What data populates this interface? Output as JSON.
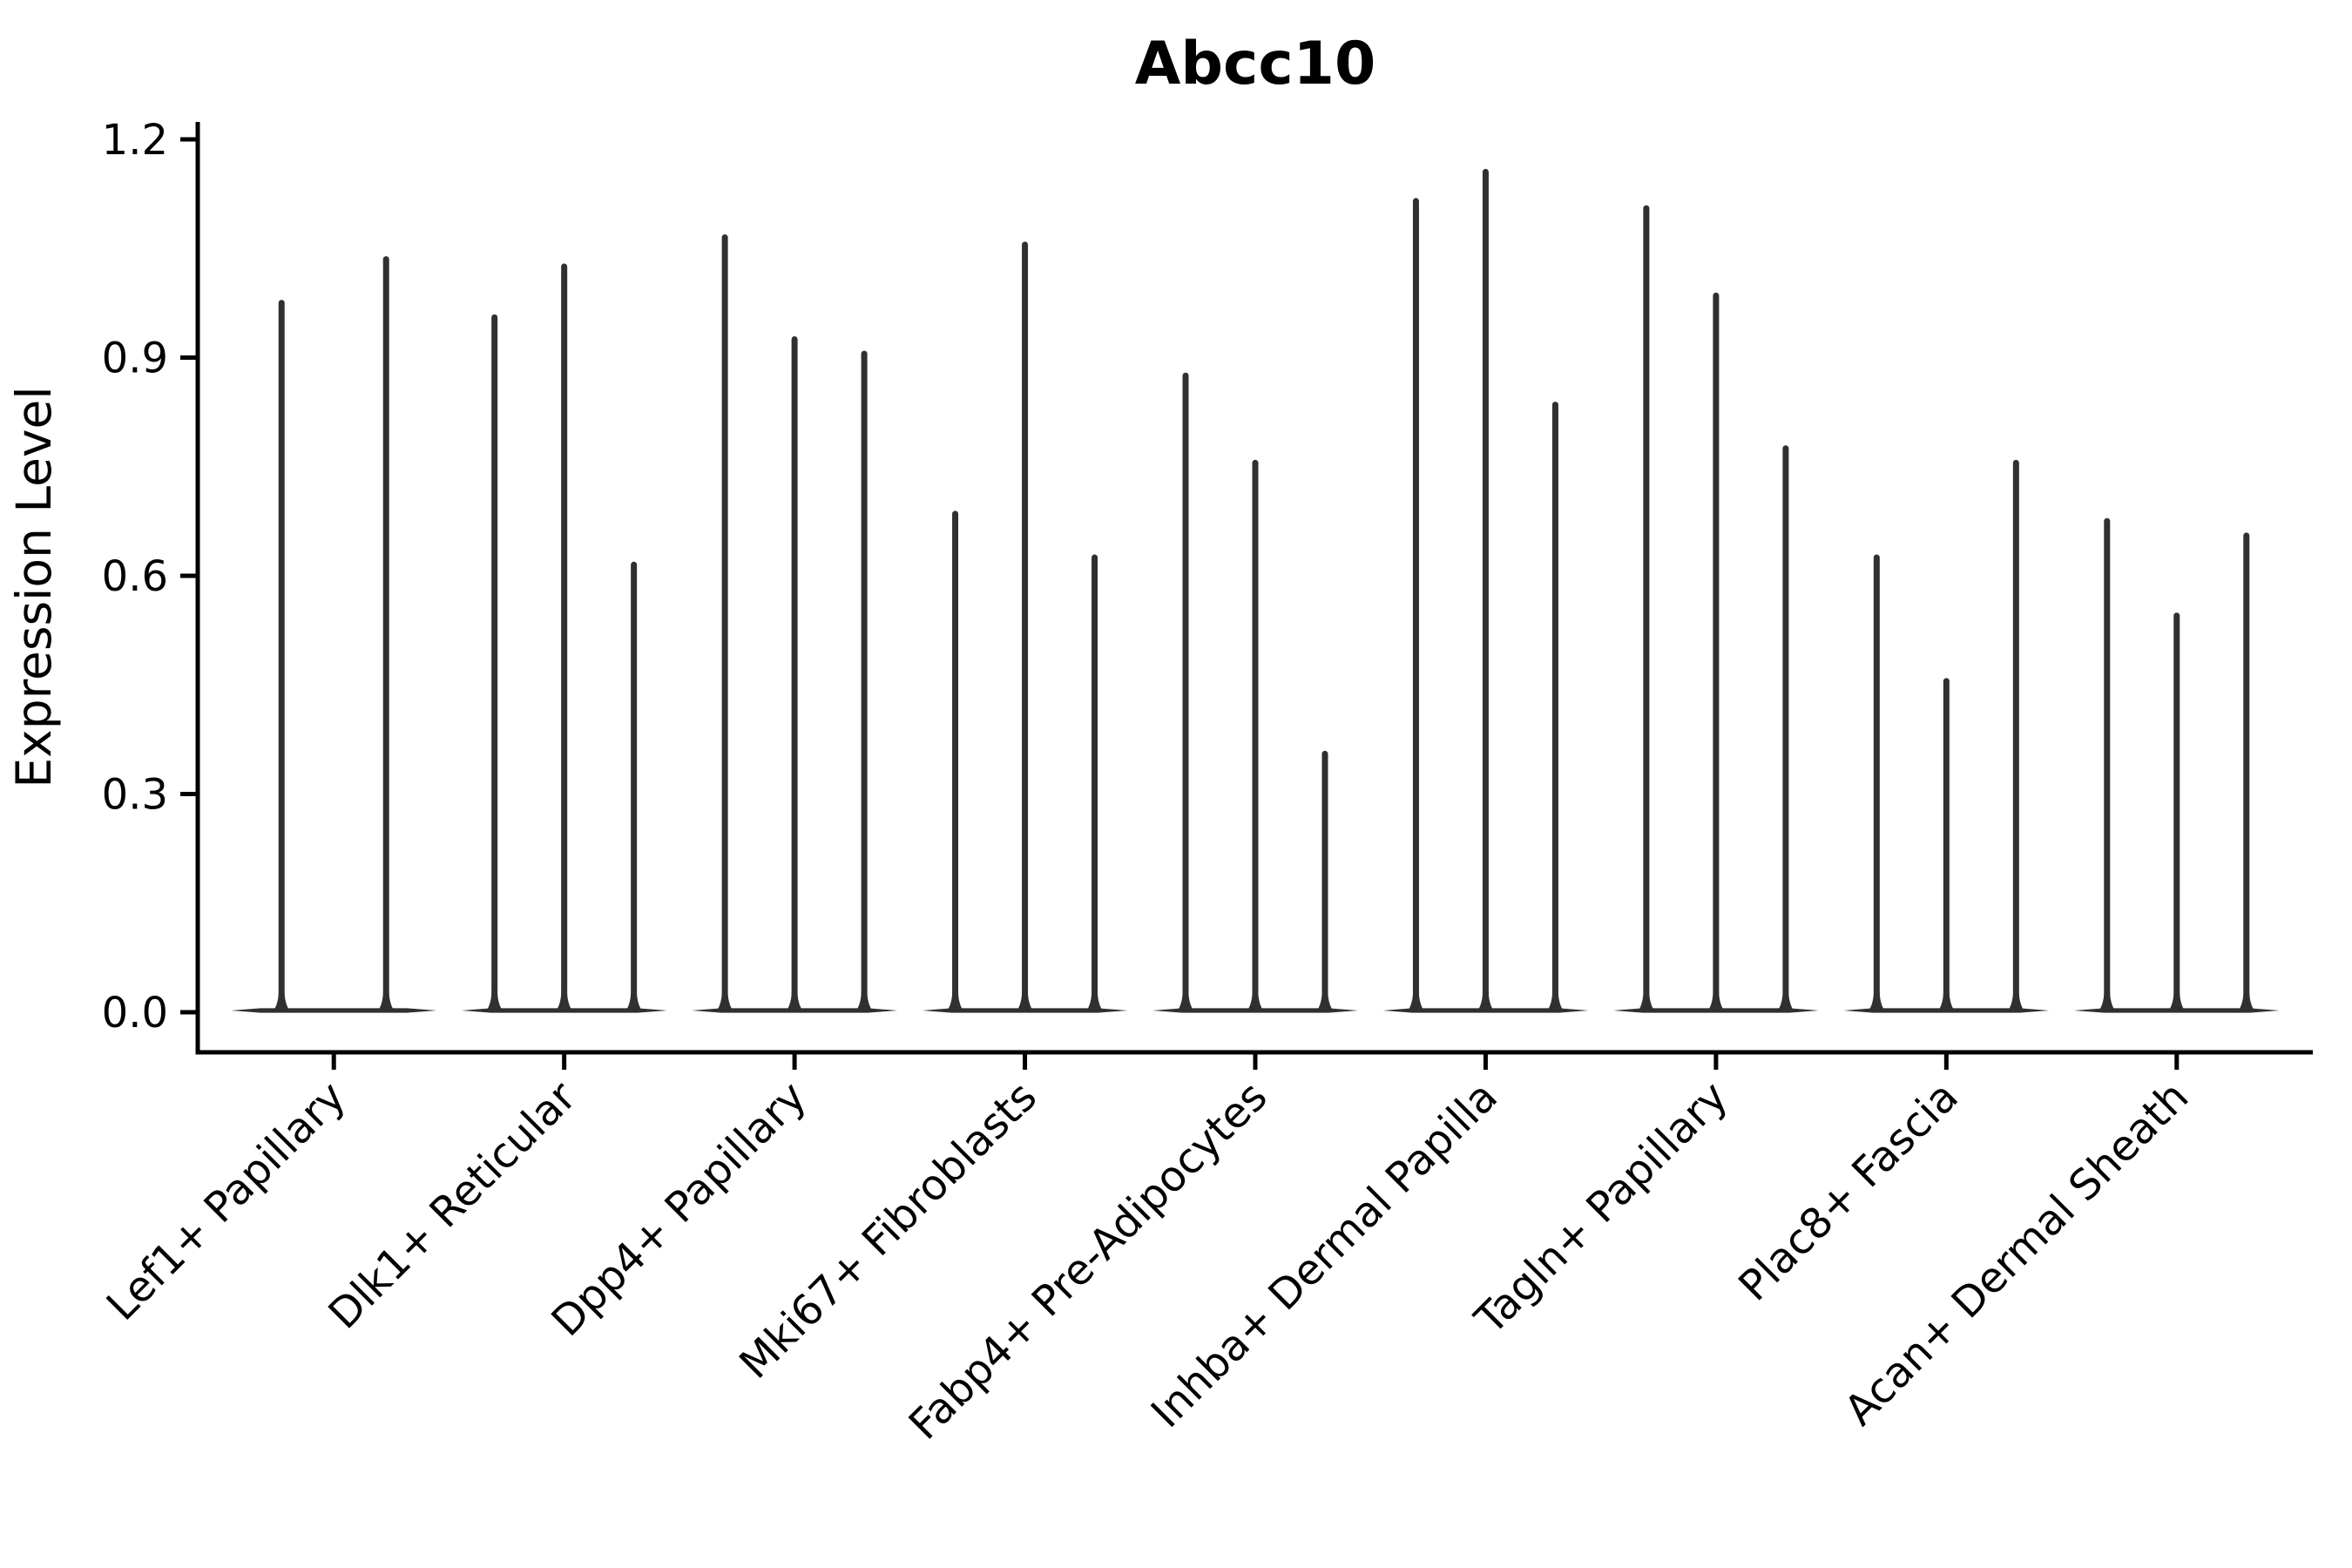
{
  "chart_data": {
    "type": "violin",
    "title": "Abcc10",
    "ylabel": "Expression Level",
    "xlabel": "",
    "ylim": [
      0,
      1.2
    ],
    "yticks": [
      0.0,
      0.3,
      0.6,
      0.9,
      1.2
    ],
    "ytick_labels": [
      "0.0",
      "0.3",
      "0.6",
      "0.9",
      "1.2"
    ],
    "grid": false,
    "legend": "none",
    "violin_color": "#303030",
    "axis_color": "#000000",
    "background_color": "#ffffff",
    "violin_style": "thin spikes rising from a flat wide base at expression 0; each category holds 2-3 dodged violins",
    "violins": [
      {
        "category": "Lef1+ Papillary",
        "maxima": [
          0.98,
          1.04
        ]
      },
      {
        "category": "Dlk1+ Reticular",
        "maxima": [
          0.96,
          1.03,
          0.62
        ]
      },
      {
        "category": "Dpp4+ Papillary",
        "maxima": [
          1.07,
          0.93,
          0.91
        ]
      },
      {
        "category": "Mki67+ Fibroblasts",
        "maxima": [
          0.69,
          1.06,
          0.63
        ]
      },
      {
        "category": "Fabp4+ Pre-Adipocytes",
        "maxima": [
          0.88,
          0.76,
          0.36
        ]
      },
      {
        "category": "Inhba+ Dermal Papilla",
        "maxima": [
          1.12,
          1.16,
          0.84
        ]
      },
      {
        "category": "Tagln+ Papillary",
        "maxima": [
          1.11,
          0.99,
          0.78
        ]
      },
      {
        "category": "Plac8+ Fascia",
        "maxima": [
          0.63,
          0.46,
          0.76
        ]
      },
      {
        "category": "Acan+ Dermal Sheath",
        "maxima": [
          0.68,
          0.55,
          0.66
        ]
      }
    ]
  }
}
